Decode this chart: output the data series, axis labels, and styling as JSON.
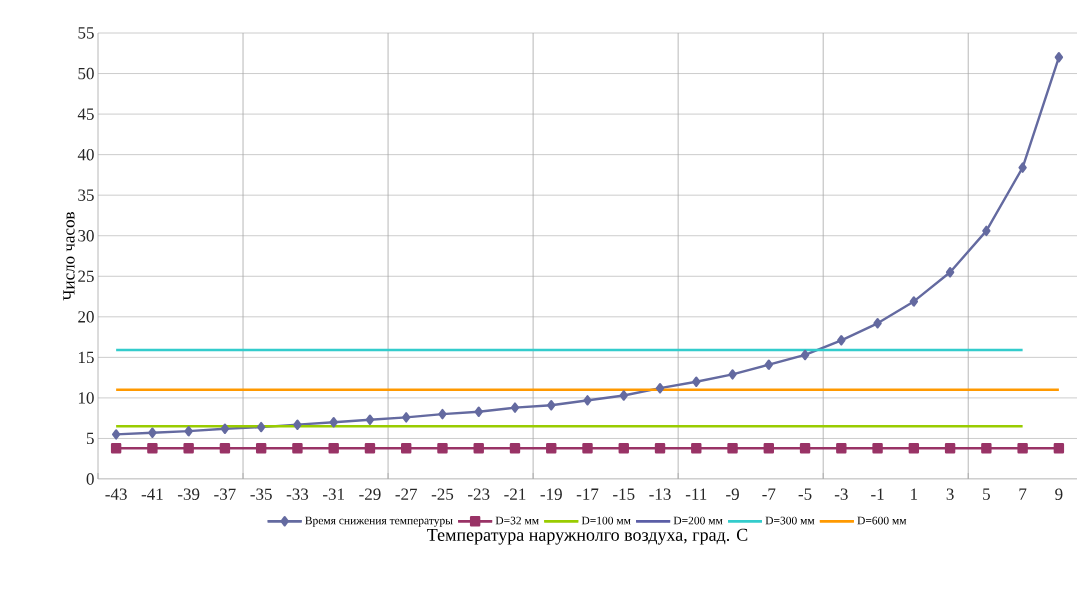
{
  "chart_data": {
    "type": "line",
    "xlabel": "Температура наружнолго воздуха, град. С",
    "ylabel": "Число часов",
    "categories": [
      "-43",
      "-41",
      "-39",
      "-37",
      "-35",
      "-33",
      "-31",
      "-29",
      "-27",
      "-25",
      "-23",
      "-21",
      "-19",
      "-17",
      "-15",
      "-13",
      "-11",
      "-9",
      "-7",
      "-5",
      "-3",
      "-1",
      "1",
      "3",
      "5",
      "7",
      "9"
    ],
    "series": [
      {
        "name": "Время снижения температуры",
        "color": "#646aa0",
        "marker": "diamond",
        "values": [
          5.5,
          5.7,
          5.9,
          6.2,
          6.4,
          6.7,
          7.0,
          7.3,
          7.6,
          8.0,
          8.3,
          8.8,
          9.1,
          9.7,
          10.3,
          11.2,
          12.0,
          12.9,
          14.1,
          15.3,
          17.1,
          19.2,
          21.9,
          25.5,
          30.6,
          38.4,
          52.0
        ]
      },
      {
        "name": "D=32 мм",
        "color": "#993366",
        "marker": "square",
        "values": [
          3.8,
          3.8,
          3.8,
          3.8,
          3.8,
          3.8,
          3.8,
          3.8,
          3.8,
          3.8,
          3.8,
          3.8,
          3.8,
          3.8,
          3.8,
          3.8,
          3.8,
          3.8,
          3.8,
          3.8,
          3.8,
          3.8,
          3.8,
          3.8,
          3.8,
          3.8,
          3.8
        ]
      },
      {
        "name": "D=100 мм",
        "color": "#99cc00",
        "values": [
          6.5,
          6.5,
          6.5,
          6.5,
          6.5,
          6.5,
          6.5,
          6.5,
          6.5,
          6.5,
          6.5,
          6.5,
          6.5,
          6.5,
          6.5,
          6.5,
          6.5,
          6.5,
          6.5,
          6.5,
          6.5,
          6.5,
          6.5,
          6.5,
          6.5,
          6.5,
          null
        ]
      },
      {
        "name": "D=200 мм",
        "color": "#5b5ea6",
        "values": [
          null,
          null,
          null,
          null,
          null,
          null,
          null,
          null,
          null,
          null,
          null,
          null,
          null,
          null,
          null,
          null,
          null,
          null,
          null,
          null,
          null,
          null,
          null,
          null,
          null,
          null,
          null
        ]
      },
      {
        "name": "D=300 мм",
        "color": "#33cccc",
        "values": [
          15.9,
          15.9,
          15.9,
          15.9,
          15.9,
          15.9,
          15.9,
          15.9,
          15.9,
          15.9,
          15.9,
          15.9,
          15.9,
          15.9,
          15.9,
          15.9,
          15.9,
          15.9,
          15.9,
          15.9,
          15.9,
          15.9,
          15.9,
          15.9,
          15.9,
          15.9,
          null
        ]
      },
      {
        "name": "D=600 мм",
        "color": "#ff9900",
        "values": [
          11.0,
          11.0,
          11.0,
          11.0,
          11.0,
          11.0,
          11.0,
          11.0,
          11.0,
          11.0,
          11.0,
          11.0,
          11.0,
          11.0,
          11.0,
          11.0,
          11.0,
          11.0,
          11.0,
          11.0,
          11.0,
          11.0,
          11.0,
          11.0,
          11.0,
          11.0,
          11.0
        ]
      }
    ],
    "ylim": [
      0,
      55
    ],
    "yticks": [
      0,
      5,
      10,
      15,
      20,
      25,
      30,
      35,
      40,
      45,
      50,
      55
    ],
    "grid": true,
    "legend": "bottom",
    "line_style": "solid"
  }
}
